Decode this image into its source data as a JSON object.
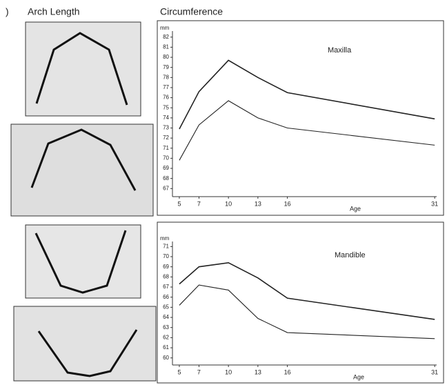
{
  "header": {
    "mark": ")",
    "left_title": "Arch Length",
    "right_title": "Circumference"
  },
  "chart_data": [
    {
      "type": "line",
      "label": "Maxilla",
      "y_label": "mm",
      "x_label": "Age",
      "x": [
        5,
        7,
        10,
        13,
        16,
        31
      ],
      "xlim": [
        4.3,
        31.2
      ],
      "xticks": [
        5,
        7,
        10,
        13,
        16,
        31
      ],
      "ylim": [
        66.2,
        82.6
      ],
      "yticks": [
        67,
        68,
        69,
        70,
        71,
        72,
        73,
        74,
        75,
        76,
        77,
        78,
        79,
        80,
        81,
        82
      ],
      "series": [
        {
          "color": "#222222",
          "values": [
            72.9,
            76.6,
            79.7,
            78.0,
            76.5,
            73.9
          ]
        },
        {
          "color": "#222222",
          "values": [
            69.8,
            73.3,
            75.7,
            74.0,
            73.0,
            71.3
          ]
        }
      ]
    },
    {
      "type": "line",
      "label": "Mandible",
      "y_label": "mm",
      "x_label": "Age",
      "x": [
        5,
        7,
        10,
        13,
        16,
        31
      ],
      "xlim": [
        4.3,
        31.2
      ],
      "xticks": [
        5,
        7,
        10,
        13,
        16,
        31
      ],
      "ylim": [
        59.3,
        71.5
      ],
      "yticks": [
        60,
        61,
        62,
        63,
        64,
        65,
        66,
        67,
        68,
        69,
        70,
        71
      ],
      "series": [
        {
          "color": "#222222",
          "values": [
            67.3,
            69.0,
            69.4,
            67.9,
            65.9,
            63.8
          ]
        },
        {
          "color": "#222222",
          "values": [
            65.2,
            67.2,
            66.7,
            63.9,
            62.5,
            61.9
          ]
        }
      ]
    }
  ]
}
